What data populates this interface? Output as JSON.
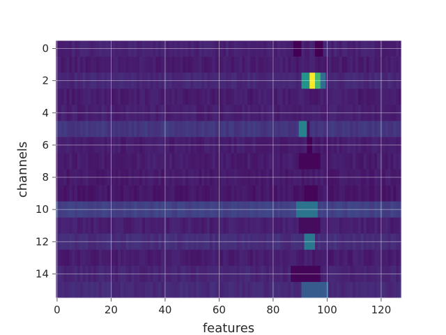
{
  "chart_data": {
    "type": "heatmap",
    "title": "",
    "xlabel": "features",
    "ylabel": "channels",
    "n_rows": 16,
    "n_cols": 128,
    "xlim": [
      -0.5,
      127.5
    ],
    "ylim": [
      15.5,
      -0.5
    ],
    "y_axis_inverted": true,
    "x_ticks": [
      0,
      20,
      40,
      60,
      80,
      100,
      120
    ],
    "y_ticks": [
      0,
      2,
      4,
      6,
      8,
      10,
      12,
      14
    ],
    "grid": true,
    "colormap": "viridis",
    "value_range": [
      0,
      1
    ],
    "row_base_levels": [
      0.12,
      0.1,
      0.14,
      0.1,
      0.11,
      0.2,
      0.1,
      0.1,
      0.09,
      0.08,
      0.24,
      0.11,
      0.16,
      0.1,
      0.13,
      0.15
    ],
    "hotspots": [
      {
        "row": 0,
        "cols": [
          88,
          90
        ],
        "value": 0.0
      },
      {
        "row": 0,
        "cols": [
          96,
          98
        ],
        "value": 0.0
      },
      {
        "row": 2,
        "cols": [
          91,
          93
        ],
        "value": 0.65
      },
      {
        "row": 2,
        "cols": [
          94,
          95
        ],
        "value": 1.0
      },
      {
        "row": 2,
        "cols": [
          96,
          97
        ],
        "value": 0.8
      },
      {
        "row": 2,
        "cols": [
          98,
          99
        ],
        "value": 0.45
      },
      {
        "row": 5,
        "cols": [
          90,
          92
        ],
        "value": 0.55
      },
      {
        "row": 5,
        "cols": [
          93,
          93
        ],
        "value": 0.05
      },
      {
        "row": 6,
        "cols": [
          93,
          94
        ],
        "value": 0.0
      },
      {
        "row": 7,
        "cols": [
          90,
          97
        ],
        "value": 0.02
      },
      {
        "row": 9,
        "cols": [
          92,
          96
        ],
        "value": 0.02
      },
      {
        "row": 10,
        "cols": [
          89,
          96
        ],
        "value": 0.48
      },
      {
        "row": 11,
        "cols": [
          90,
          97
        ],
        "value": 0.04
      },
      {
        "row": 12,
        "cols": [
          92,
          95
        ],
        "value": 0.5
      },
      {
        "row": 14,
        "cols": [
          87,
          97
        ],
        "value": 0.01
      },
      {
        "row": 15,
        "cols": [
          91,
          100
        ],
        "value": 0.36
      }
    ]
  }
}
